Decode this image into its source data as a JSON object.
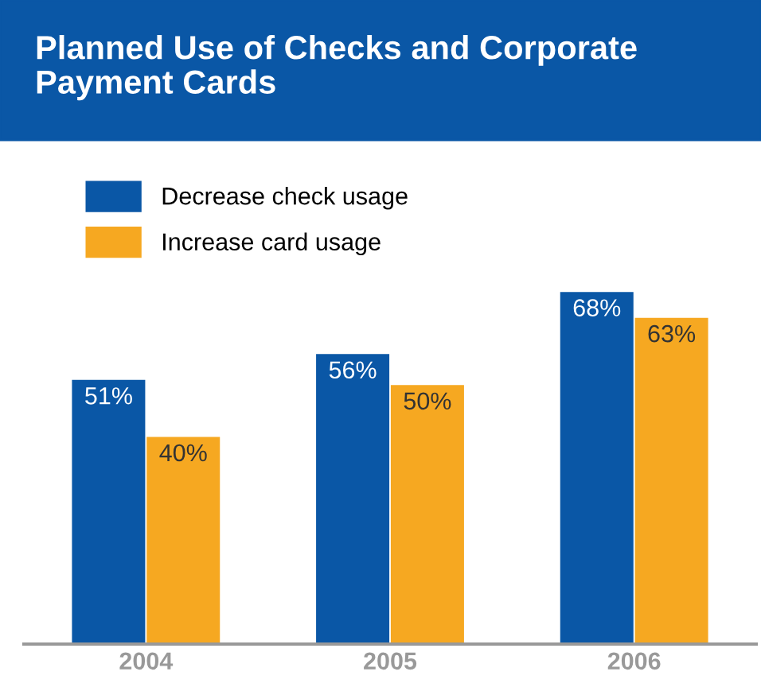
{
  "chart_data": {
    "type": "bar",
    "title": "Planned Use of Checks and Corporate\nPayment Cards",
    "categories": [
      "2004",
      "2005",
      "2006"
    ],
    "series": [
      {
        "name": "Decrease check usage",
        "color": "#0a57a6",
        "values": [
          51,
          56,
          68
        ],
        "value_labels": [
          "51%",
          "56%",
          "68%"
        ]
      },
      {
        "name": "Increase card usage",
        "color": "#f6a821",
        "values": [
          40,
          50,
          63
        ],
        "value_labels": [
          "40%",
          "50%",
          "63%"
        ]
      }
    ],
    "tick_labels": "x",
    "legend": "top left",
    "grid": false
  }
}
